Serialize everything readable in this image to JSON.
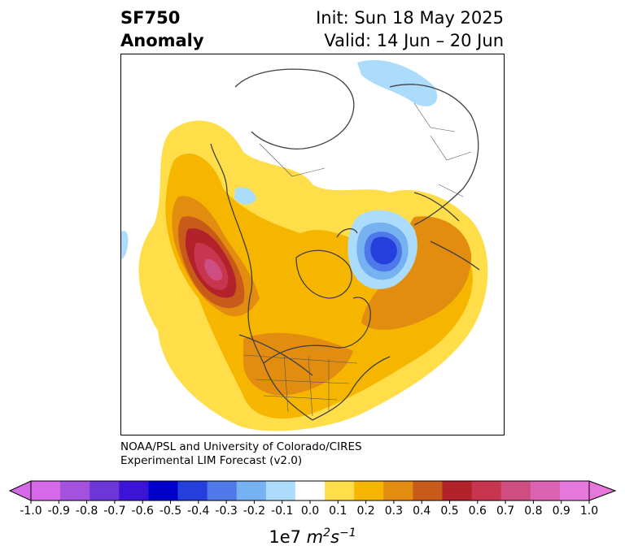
{
  "header": {
    "title_line1": "SF750",
    "title_line2": "Anomaly",
    "init": "Init: Sun 18 May 2025",
    "valid": "Valid: 14 Jun – 20 Jun"
  },
  "credit": {
    "line1": "NOAA/PSL and University of Colorado/CIRES",
    "line2": "Experimental LIM Forecast (v2.0)"
  },
  "colorbar": {
    "ticks": [
      "-1.0",
      "-0.9",
      "-0.8",
      "-0.7",
      "-0.6",
      "-0.5",
      "-0.4",
      "-0.3",
      "-0.2",
      "-0.1",
      "0.0",
      "0.1",
      "0.2",
      "0.3",
      "0.4",
      "0.5",
      "0.6",
      "0.7",
      "0.8",
      "0.9",
      "1.0"
    ],
    "colors": [
      "#a451dd",
      "#6c36d9",
      "#3b14d6",
      "#0000cd",
      "#253fdc",
      "#4f78e8",
      "#76b1f2",
      "#acdcfb",
      "#ffffff",
      "#ffde4a",
      "#f6b600",
      "#e38d10",
      "#c85a1a",
      "#b3222a",
      "#c7354f",
      "#cf4e82",
      "#dc62b2"
    ],
    "under_color": "#d569e8",
    "over_color": "#e678dc",
    "unit_base": "1e7 ",
    "unit_m": "m",
    "unit_m_exp": "2",
    "unit_s": "s",
    "unit_s_exp": "−1"
  }
}
